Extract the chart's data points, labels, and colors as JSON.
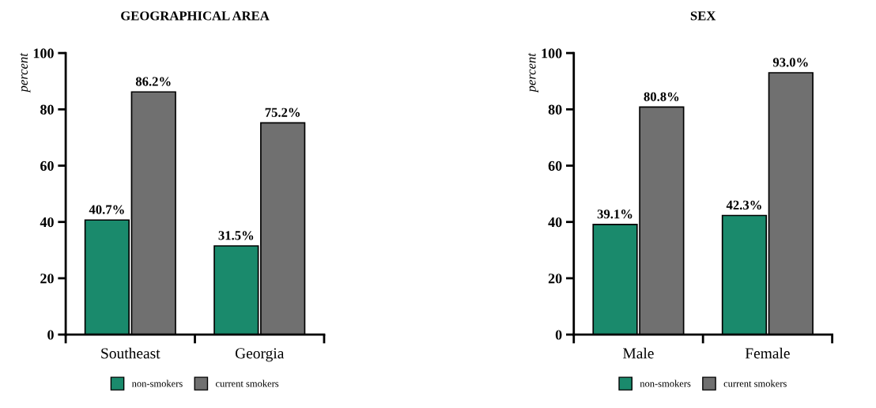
{
  "chart_data": [
    {
      "type": "bar",
      "title": "GEOGRAPHICAL AREA",
      "ylabel": "percent",
      "categories": [
        "Southeast",
        "Georgia"
      ],
      "series": [
        {
          "name": "non-smokers",
          "color": "#1a8a6c",
          "values": [
            40.7,
            31.5
          ],
          "value_labels": [
            "40.7%",
            "31.5%"
          ]
        },
        {
          "name": "current smokers",
          "color": "#707070",
          "values": [
            86.2,
            75.2
          ],
          "value_labels": [
            "86.2%",
            "75.2%"
          ]
        }
      ],
      "ylim": [
        0,
        100
      ],
      "yticks": [
        0,
        20,
        40,
        60,
        80,
        100
      ],
      "grid": false,
      "legend": "bottom"
    },
    {
      "type": "bar",
      "title": "SEX",
      "ylabel": "percent",
      "categories": [
        "Male",
        "Female"
      ],
      "series": [
        {
          "name": "non-smokers",
          "color": "#1a8a6c",
          "values": [
            39.1,
            42.3
          ],
          "value_labels": [
            "39.1%",
            "42.3%"
          ]
        },
        {
          "name": "current smokers",
          "color": "#707070",
          "values": [
            80.8,
            93.0
          ],
          "value_labels": [
            "80.8%",
            "93.0%"
          ]
        }
      ],
      "ylim": [
        0,
        100
      ],
      "yticks": [
        0,
        20,
        40,
        60,
        80,
        100
      ],
      "grid": false,
      "legend": "bottom"
    }
  ]
}
